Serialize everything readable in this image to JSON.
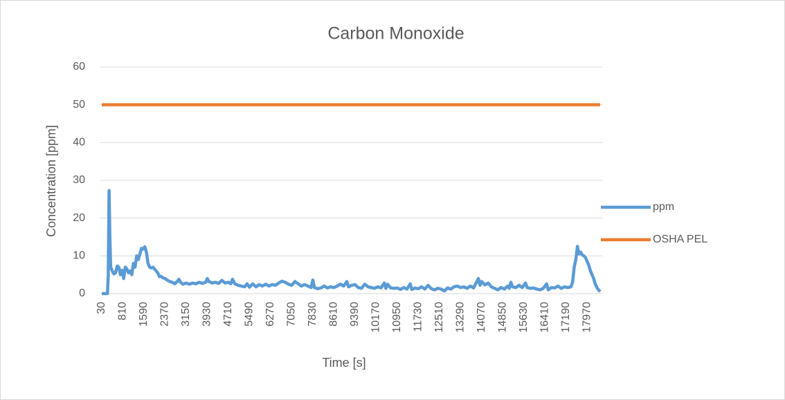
{
  "chart_data": {
    "type": "line",
    "title": "Carbon Monoxide",
    "xlabel": "Time [s]",
    "ylabel": "Concentration [ppm]",
    "xlim": [
      30,
      18540
    ],
    "ylim": [
      0,
      60
    ],
    "xticks": [
      30,
      810,
      1590,
      2370,
      3150,
      3930,
      4710,
      5490,
      6270,
      7050,
      7830,
      8610,
      9390,
      10170,
      10950,
      11730,
      12510,
      13290,
      14070,
      14850,
      15630,
      16410,
      17190,
      17970
    ],
    "yticks": [
      0,
      10,
      20,
      30,
      40,
      50,
      60
    ],
    "grid": true,
    "legend": "right",
    "series": [
      {
        "name": "ppm",
        "color": "#5b9bd5",
        "x": [
          30,
          240,
          270,
          300,
          330,
          360,
          420,
          480,
          540,
          600,
          660,
          720,
          780,
          840,
          900,
          960,
          1020,
          1080,
          1140,
          1200,
          1260,
          1320,
          1380,
          1440,
          1500,
          1560,
          1620,
          1680,
          1740,
          1800,
          1860,
          1920,
          1980,
          2040,
          2100,
          2160,
          2220,
          2280,
          2370,
          2460,
          2550,
          2640,
          2730,
          2820,
          2880,
          2940,
          3030,
          3150,
          3270,
          3390,
          3510,
          3630,
          3750,
          3870,
          3930,
          3990,
          4110,
          4230,
          4350,
          4470,
          4590,
          4710,
          4800,
          4860,
          4950,
          5070,
          5190,
          5310,
          5400,
          5490,
          5610,
          5730,
          5850,
          5970,
          6090,
          6210,
          6330,
          6450,
          6570,
          6690,
          6810,
          6930,
          7050,
          7170,
          7290,
          7410,
          7530,
          7650,
          7770,
          7830,
          7890,
          8010,
          8130,
          8250,
          8370,
          8490,
          8610,
          8730,
          8850,
          8970,
          9090,
          9150,
          9270,
          9390,
          9510,
          9630,
          9750,
          9870,
          9990,
          10110,
          10230,
          10350,
          10470,
          10530,
          10590,
          10710,
          10830,
          10950,
          11070,
          11190,
          11310,
          11430,
          11490,
          11610,
          11730,
          11850,
          11970,
          12090,
          12210,
          12330,
          12450,
          12570,
          12690,
          12810,
          12930,
          13050,
          13170,
          13290,
          13410,
          13530,
          13650,
          13770,
          13950,
          14010,
          14070,
          14190,
          14310,
          14430,
          14550,
          14670,
          14790,
          14910,
          15030,
          15090,
          15150,
          15210,
          15330,
          15450,
          15570,
          15690,
          15750,
          15870,
          15990,
          16110,
          16230,
          16350,
          16470,
          16530,
          16650,
          16770,
          16890,
          17010,
          17130,
          17250,
          17370,
          17430,
          17490,
          17550,
          17610,
          17670,
          17730,
          17790,
          17850,
          17910,
          17970,
          18030,
          18090,
          18150,
          18210,
          18270,
          18330,
          18390,
          18450
        ],
        "values": [
          0,
          0,
          5,
          27.3,
          15,
          7,
          6,
          5.2,
          5.5,
          7.3,
          7,
          5,
          6.2,
          4,
          7,
          6.5,
          5.5,
          6,
          5,
          8,
          7,
          10,
          9,
          10.5,
          12,
          11.8,
          12.4,
          11,
          8,
          7,
          6.8,
          7,
          6.5,
          6,
          5.5,
          4.5,
          4.6,
          4.2,
          4,
          3.5,
          3.2,
          3,
          2.6,
          3.2,
          3.8,
          3,
          2.5,
          2.8,
          2.5,
          2.8,
          2.6,
          3,
          2.7,
          3,
          4,
          3.2,
          2.8,
          3,
          2.7,
          3.5,
          2.8,
          3,
          2.6,
          3.8,
          2.6,
          2.2,
          2,
          1.8,
          2.6,
          1.7,
          2.6,
          1.8,
          2.4,
          2,
          2.5,
          2,
          2.4,
          2.2,
          2.8,
          3.3,
          3,
          2.5,
          2.2,
          3.2,
          2.6,
          2,
          2.4,
          2,
          1.6,
          3.6,
          1.6,
          1.3,
          1.5,
          2,
          1.5,
          1.8,
          1.6,
          2,
          2.5,
          2,
          3.2,
          1.8,
          2.2,
          2.4,
          1.6,
          1.4,
          2.5,
          1.8,
          1.6,
          1.4,
          1.8,
          1.5,
          2.8,
          1.4,
          2.5,
          1.5,
          1.4,
          1.5,
          1.1,
          1.6,
          1.2,
          2.6,
          1.1,
          1.5,
          1.3,
          1.8,
          1.2,
          2.2,
          1.3,
          1,
          1.4,
          1.2,
          0.7,
          1.5,
          1.2,
          1.8,
          2,
          1.6,
          1.8,
          1.4,
          2,
          1.5,
          4,
          2.2,
          3.2,
          2.3,
          2.8,
          1.8,
          1.4,
          1,
          1.6,
          1.2,
          2,
          1.4,
          3,
          1.8,
          1.6,
          2.2,
          1.6,
          2.8,
          1.6,
          1.4,
          1.5,
          1.2,
          1,
          1.4,
          2.6,
          1,
          1.6,
          1.5,
          2,
          1.4,
          1.8,
          1.6,
          1.8,
          3,
          7,
          9,
          12.5,
          10.5,
          11,
          10.2,
          10,
          9.5,
          8.5,
          7.5,
          6,
          5,
          4,
          2.5,
          1.6,
          1,
          0.5
        ]
      },
      {
        "name": "OSHA PEL",
        "color": "#ed7d31",
        "x": [
          30,
          18450
        ],
        "values": [
          50,
          50
        ]
      }
    ]
  }
}
